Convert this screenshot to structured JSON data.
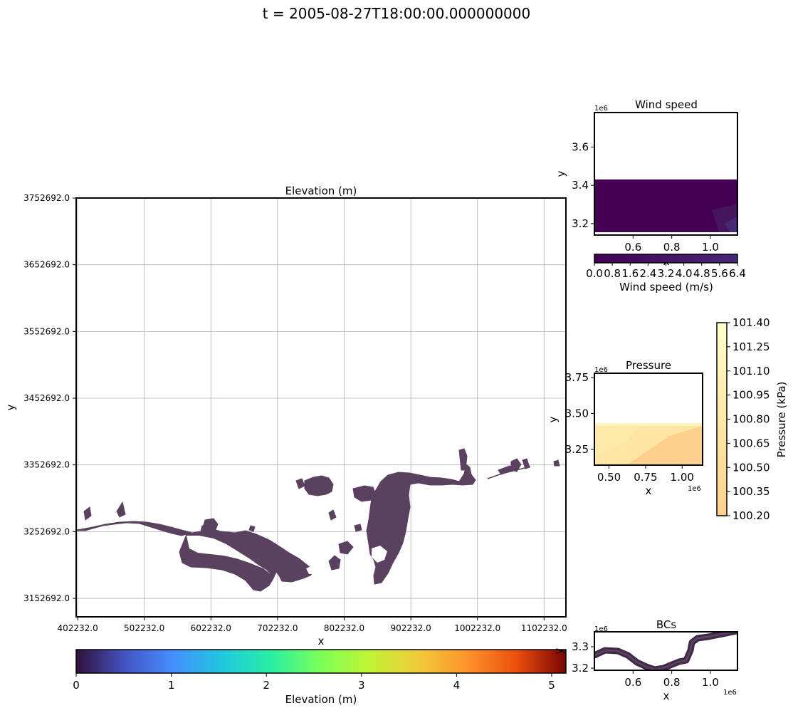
{
  "figure": {
    "title": "t = 2005-08-27T18:00:00.000000000"
  },
  "colors": {
    "land": "#5b4160",
    "wind_field": "#440154",
    "pressure_light": "#fde9aa",
    "pressure_dark": "#fdd08d",
    "bc_line": "#3f2a45"
  },
  "chart_data": [
    {
      "id": "elevation",
      "type": "heatmap",
      "title": "Elevation (m)",
      "xlabel": "x",
      "ylabel": "y",
      "xticks": [
        "402232.0",
        "502232.0",
        "602232.0",
        "702232.0",
        "802232.0",
        "902232.0",
        "1002232.0",
        "1102232.0"
      ],
      "yticks": [
        "3152692.0",
        "3252692.0",
        "3352692.0",
        "3452692.0",
        "3552692.0",
        "3652692.0",
        "3752692.0"
      ],
      "xlim": [
        400000,
        1135000
      ],
      "ylim": [
        3125000,
        3752692
      ],
      "grid": true,
      "colorbar": {
        "label": "Elevation (m)",
        "ticks": [
          "0",
          "1",
          "2",
          "3",
          "4",
          "5"
        ],
        "range": [
          0,
          5.15
        ],
        "colormap": "turbo"
      }
    },
    {
      "id": "wind",
      "type": "heatmap",
      "title": "Wind speed",
      "xlabel": "x",
      "ylabel": "y",
      "scale_label": "1e6",
      "xticks": [
        "0.6",
        "0.8",
        "1.0"
      ],
      "yticks": [
        "3.2",
        "3.4",
        "3.6"
      ],
      "xlim": [
        0.4,
        1.14
      ],
      "ylim": [
        3.14,
        3.78
      ],
      "colorbar": {
        "label": "Wind speed (m/s)",
        "ticks": [
          "0.0",
          "0.8",
          "1.6",
          "2.4",
          "3.2",
          "4.0",
          "4.8",
          "5.6",
          "6.4"
        ],
        "range": [
          0,
          6.4
        ],
        "colormap": "viridis"
      }
    },
    {
      "id": "pressure",
      "type": "heatmap",
      "title": "Pressure",
      "xlabel": "x",
      "ylabel": "y",
      "scale_label_x": "1e6",
      "scale_label_y": "1e6",
      "xticks": [
        "0.50",
        "0.75",
        "1.00"
      ],
      "yticks": [
        "3.25",
        "3.50",
        "3.75"
      ],
      "xlim": [
        0.4,
        1.14
      ],
      "ylim": [
        3.14,
        3.78
      ],
      "colorbar": {
        "label": "Pressure (kPa)",
        "ticks": [
          "100.20",
          "100.35",
          "100.50",
          "100.65",
          "100.80",
          "100.95",
          "101.10",
          "101.25",
          "101.40"
        ],
        "range": [
          100.2,
          101.4
        ],
        "colormap": "YlOrBr"
      }
    },
    {
      "id": "bcs",
      "type": "line",
      "title": "BCs",
      "xlabel": "x",
      "ylabel": "y",
      "scale_label_x": "1e6",
      "scale_label_y": "1e6",
      "xticks": [
        "0.6",
        "0.8",
        "1.0"
      ],
      "yticks": [
        "3.2",
        "3.3"
      ],
      "xlim": [
        0.4,
        1.14
      ],
      "ylim": [
        3.19,
        3.37
      ]
    }
  ]
}
